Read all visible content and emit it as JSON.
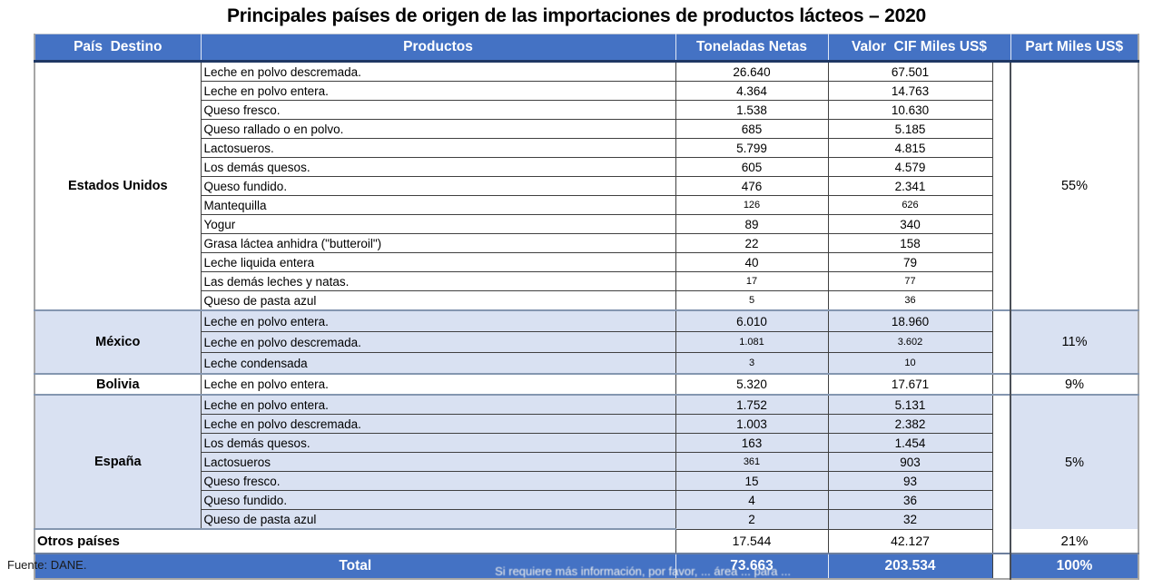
{
  "title": "Principales países de origen de las importaciones de productos lácteos – 2020",
  "source_note": "Fuente: DANE.",
  "watermark": "Si requiere más información, por favor, ... área ... para ...",
  "colors": {
    "header_blue": "#4472C4",
    "band_light_blue": "#D9E1F2",
    "group_border": "#8496b0",
    "header_text": "#ffffff"
  },
  "table": {
    "headers": {
      "country": "País  Destino",
      "products": "Productos",
      "tons": "Toneladas Netas",
      "value": "Valor  CIF Miles US$",
      "part": "Part Miles US$"
    },
    "groups": [
      {
        "country": "Estados Unidos",
        "part": "55%",
        "shaded": false,
        "rows": [
          {
            "product": "Leche en polvo descremada.",
            "tons": "26.640",
            "value": "67.501"
          },
          {
            "product": "Leche en polvo entera.",
            "tons": "4.364",
            "value": "14.763"
          },
          {
            "product": "Queso fresco.",
            "tons": "1.538",
            "value": "10.630"
          },
          {
            "product": "Queso rallado o en polvo.",
            "tons": "685",
            "value": "5.185"
          },
          {
            "product": "Lactosueros.",
            "tons": "5.799",
            "value": "4.815"
          },
          {
            "product": "Los demás quesos.",
            "tons": "605",
            "value": "4.579"
          },
          {
            "product": "Queso fundido.",
            "tons": "476",
            "value": "2.341"
          },
          {
            "product": "Mantequilla",
            "tons": "126",
            "value": "626",
            "small": "tv"
          },
          {
            "product": "Yogur",
            "tons": "89",
            "value": "340"
          },
          {
            "product": "Grasa láctea anhidra (\"butteroil\")",
            "tons": "22",
            "value": "158"
          },
          {
            "product": "Leche liquida entera",
            "tons": "40",
            "value": "79"
          },
          {
            "product": "Las demás leches y natas.",
            "tons": "17",
            "value": "77",
            "small": "tv"
          },
          {
            "product": "Queso de pasta azul",
            "tons": "5",
            "value": "36",
            "small": "tv"
          }
        ]
      },
      {
        "country": "México",
        "part": "11%",
        "shaded": true,
        "rows": [
          {
            "product": "Leche en polvo entera.",
            "tons": "6.010",
            "value": "18.960"
          },
          {
            "product": "Leche en polvo descremada.",
            "tons": "1.081",
            "value": "3.602",
            "small": "tv"
          },
          {
            "product": "Leche condensada",
            "tons": "3",
            "value": "10",
            "small": "tv"
          }
        ]
      },
      {
        "country": "Bolivia",
        "part": "9%",
        "shaded": false,
        "rows": [
          {
            "product": "Leche en polvo entera.",
            "tons": "5.320",
            "value": "17.671"
          }
        ]
      },
      {
        "country": "España",
        "part": "5%",
        "shaded": true,
        "rows": [
          {
            "product": "Leche en polvo entera.",
            "tons": "1.752",
            "value": "5.131"
          },
          {
            "product": "Leche en polvo descremada.",
            "tons": "1.003",
            "value": "2.382"
          },
          {
            "product": "Los demás quesos.",
            "tons": "163",
            "value": "1.454"
          },
          {
            "product": "Lactosueros",
            "tons": "361",
            "value": "903",
            "small": "t"
          },
          {
            "product": "Queso fresco.",
            "tons": "15",
            "value": "93"
          },
          {
            "product": "Queso fundido.",
            "tons": "4",
            "value": "36"
          },
          {
            "product": "Queso de pasta azul",
            "tons": "2",
            "value": "32"
          }
        ]
      }
    ],
    "otros": {
      "label": "Otros países",
      "tons": "17.544",
      "value": "42.127",
      "part": "21%"
    },
    "total": {
      "label": "Total",
      "tons": "73.663",
      "value": "203.534",
      "part": "100%"
    }
  }
}
